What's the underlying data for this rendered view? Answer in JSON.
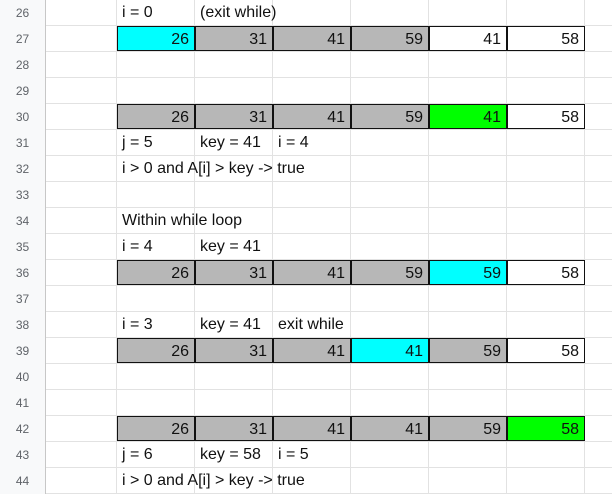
{
  "sheet": {
    "rows": [
      {
        "number": "26",
        "texts": {
          "c1": "i = 0",
          "c2": "(exit while)"
        }
      },
      {
        "number": "27",
        "values": [
          "26",
          "31",
          "41",
          "59",
          "41",
          "58"
        ]
      },
      {
        "number": "28"
      },
      {
        "number": "29"
      },
      {
        "number": "30",
        "values": [
          "26",
          "31",
          "41",
          "59",
          "41",
          "58"
        ]
      },
      {
        "number": "31",
        "texts": {
          "c1": "j = 5",
          "c2": "key = 41",
          "c3": "i = 4"
        }
      },
      {
        "number": "32",
        "texts": {
          "c1": "i > 0 and A[i] > key -> true"
        }
      },
      {
        "number": "33"
      },
      {
        "number": "34",
        "texts": {
          "c1": "Within while loop"
        }
      },
      {
        "number": "35",
        "texts": {
          "c1": "i = 4",
          "c2": "key = 41"
        }
      },
      {
        "number": "36",
        "values": [
          "26",
          "31",
          "41",
          "59",
          "59",
          "58"
        ]
      },
      {
        "number": "37"
      },
      {
        "number": "38",
        "texts": {
          "c1": "i = 3",
          "c2": "key = 41",
          "c3": "exit while"
        }
      },
      {
        "number": "39",
        "values": [
          "26",
          "31",
          "41",
          "41",
          "59",
          "58"
        ]
      },
      {
        "number": "40"
      },
      {
        "number": "41"
      },
      {
        "number": "42",
        "values": [
          "26",
          "31",
          "41",
          "41",
          "59",
          "58"
        ]
      },
      {
        "number": "43",
        "texts": {
          "c1": "j = 6",
          "c2": "key = 58",
          "c3": "i = 5"
        }
      },
      {
        "number": "44",
        "texts": {
          "c1": "i > 0 and A[i] > key -> true"
        }
      }
    ]
  },
  "colors": {
    "gray_fill": "#b7b7b7",
    "cyan_fill": "#00ffff",
    "green_fill": "#00ff00",
    "white_fill": "#ffffff"
  }
}
